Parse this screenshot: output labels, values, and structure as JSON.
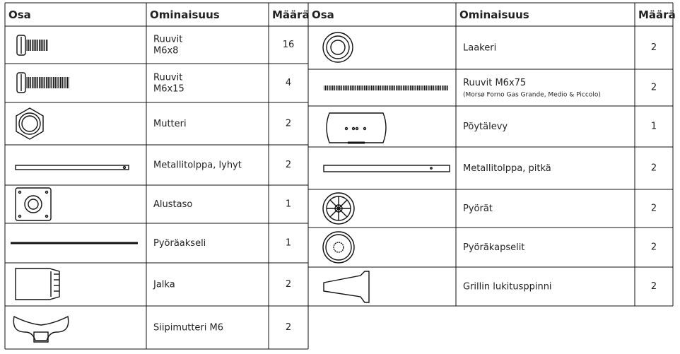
{
  "tables": [
    {
      "headers": [
        "Osa",
        "Ominaisuus",
        "Määrä"
      ],
      "rows": [
        {
          "feature": "Ruuvit\nM6x8",
          "qty": "16"
        },
        {
          "feature": "Ruuvit\nM6x15",
          "qty": "4"
        },
        {
          "feature": "Mutteri",
          "qty": "2"
        },
        {
          "feature": "Metallitolppa, lyhyt",
          "qty": "2"
        },
        {
          "feature": "Alustaso",
          "qty": "1"
        },
        {
          "feature": "Pyöräakseli",
          "qty": "1"
        },
        {
          "feature": "Jalka",
          "qty": "2"
        },
        {
          "feature": "Siipimutteri M6",
          "qty": "2"
        }
      ]
    },
    {
      "headers": [
        "Osa",
        "Ominaisuus",
        "Määrä"
      ],
      "rows": [
        {
          "feature": "Laakeri",
          "qty": "2"
        },
        {
          "feature": "Ruuvit M6x75",
          "note": "(Morsø Forno Gas Grande, Medio & Piccolo)",
          "qty": "2"
        },
        {
          "feature": "Pöytälevy",
          "qty": "1"
        },
        {
          "feature": "Metallitolppa, pitkä",
          "qty": "2"
        },
        {
          "feature": "Pyörät",
          "qty": "2"
        },
        {
          "feature": "Pyöräkapselit",
          "qty": "2"
        },
        {
          "feature": "Grillin lukitusppinni",
          "qty": "2"
        }
      ]
    }
  ]
}
